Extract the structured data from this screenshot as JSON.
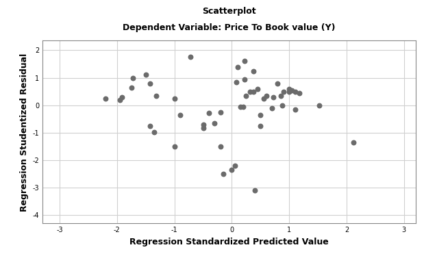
{
  "chart_data": {
    "type": "scatter",
    "title": "Scatterplot",
    "subtitle": "Dependent Variable: Price To Book value (Y)",
    "x_label": "Regression Standardized Predicted Value",
    "y_label": "Regression Studentized Residual",
    "x": [
      -2.2,
      -1.95,
      -1.92,
      -1.75,
      -1.72,
      -1.5,
      -1.42,
      -1.32,
      -1.42,
      -1.35,
      -1.0,
      -1.0,
      -0.9,
      -0.72,
      -0.5,
      -0.5,
      -0.4,
      -0.3,
      -0.2,
      -0.2,
      -0.15,
      0.0,
      0.05,
      0.08,
      0.1,
      0.15,
      0.2,
      0.22,
      0.22,
      0.25,
      0.32,
      0.38,
      0.38,
      0.4,
      0.45,
      0.5,
      0.5,
      0.55,
      0.6,
      0.7,
      0.72,
      0.8,
      0.85,
      0.9,
      0.88,
      1.0,
      1.0,
      1.05,
      1.1,
      1.1,
      1.18,
      1.52,
      2.12
    ],
    "values": [
      0.25,
      0.2,
      0.3,
      0.65,
      0.98,
      1.12,
      0.8,
      0.35,
      -0.75,
      -0.97,
      0.25,
      -1.5,
      -0.35,
      1.75,
      -0.7,
      -0.82,
      -0.28,
      -0.65,
      -0.25,
      -1.5,
      -2.5,
      -2.35,
      -2.2,
      0.85,
      1.4,
      -0.05,
      -0.05,
      0.95,
      1.62,
      0.35,
      0.5,
      0.5,
      1.25,
      -3.1,
      0.58,
      -0.35,
      -0.75,
      0.25,
      0.35,
      -0.1,
      0.3,
      0.8,
      0.35,
      0.48,
      0.0,
      0.6,
      0.5,
      0.55,
      -0.15,
      0.5,
      0.45,
      0.0,
      -1.35
    ],
    "color": "#6b6b6b",
    "marker": "o",
    "xlim": [
      -3.3,
      3.2
    ],
    "xticks": [
      -3,
      -2,
      -1,
      0,
      1,
      2,
      3
    ],
    "ylim": [
      -4.3,
      2.35
    ],
    "yticks": [
      -4,
      -3,
      -2,
      -1,
      0,
      1,
      2
    ],
    "grid": true
  }
}
